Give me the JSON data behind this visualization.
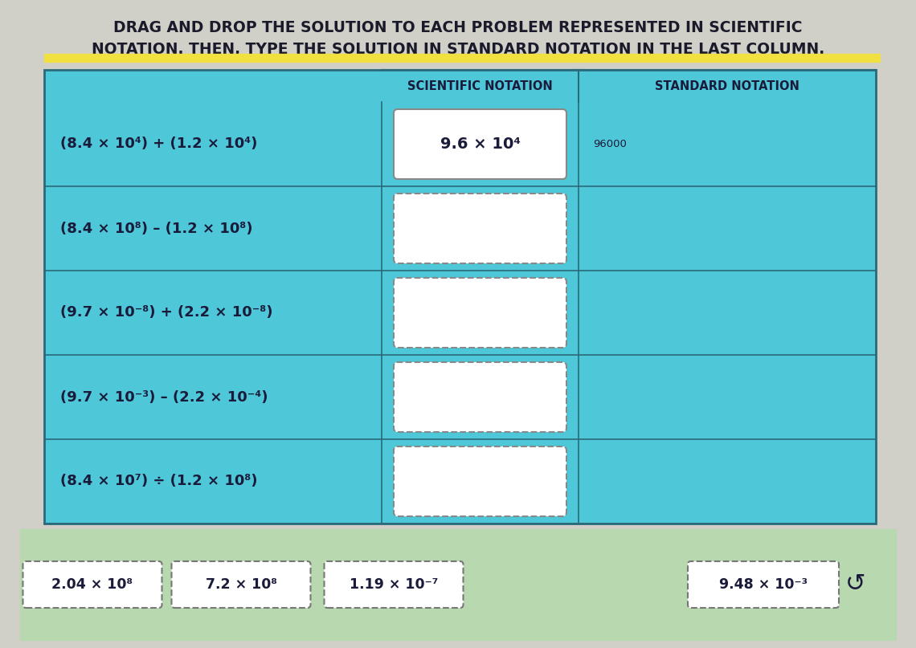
{
  "title_line1": "DRAG AND DROP THE SOLUTION TO EACH PROBLEM REPRESENTED IN SCIENTIFIC",
  "title_line2": "NOTATION. THEN, TYPE THE SOLUTION IN STANDARD NOTATION IN THE LAST COLUMN.",
  "title_underline_color": "#F0E040",
  "outer_bg": "#D0CFC8",
  "table_bg": "#4EC8D8",
  "cell_white": "#FFFFFF",
  "green_bg": "#B8D8B0",
  "table_border": "#2A6A7A",
  "text_color": "#1A1A3A",
  "title_color": "#1A1A2A",
  "row_problems": [
    "(8.4 × 10⁴) + (1.2 × 10⁴)",
    "(8.4 × 10⁸) – (1.2 × 10⁸)",
    "(9.7 × 10⁻⁸) + (2.2 × 10⁻⁸)",
    "(9.7 × 10⁻³) – (2.2 × 10⁻⁴)",
    "(8.4 × 10⁷) ÷ (1.2 × 10⁸)"
  ],
  "row1_sci_answer": "9.6 × 10⁴",
  "row1_std_answer": "96000",
  "col_header1": "SCIENTIFIC NOTATION",
  "col_header2": "STANDARD NOTATION",
  "draggable_items": [
    "2.04 × 10⁸",
    "7.2 × 10⁸",
    "1.19 × 10⁻⁷",
    "9.48 × 10⁻³"
  ]
}
